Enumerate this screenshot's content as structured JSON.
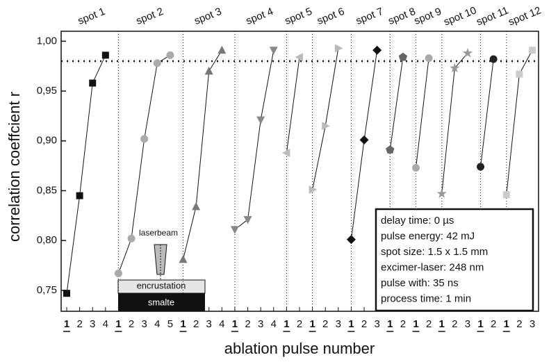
{
  "chart_data": {
    "type": "line",
    "x_label": "ablation pulse number",
    "y_label": "correlation coeffcient r",
    "categories": [
      "1",
      "2",
      "3",
      "4",
      "1",
      "2",
      "3",
      "4",
      "5",
      "1",
      "2",
      "3",
      "4",
      "1",
      "2",
      "3",
      "4",
      "1",
      "2",
      "1",
      "2",
      "3",
      "1",
      "2",
      "3",
      "1",
      "2",
      "1",
      "2",
      "1",
      "2",
      "3",
      "1",
      "2",
      "1",
      "2",
      "3"
    ],
    "ylim": [
      0.729,
      1.01
    ],
    "yticks": [
      {
        "value": 0.75,
        "label": "0,75"
      },
      {
        "value": 0.8,
        "label": "0,80"
      },
      {
        "value": 0.85,
        "label": "0,85"
      },
      {
        "value": 0.9,
        "label": "0,90"
      },
      {
        "value": 0.95,
        "label": "0,95"
      },
      {
        "value": 1.0,
        "label": "1,00"
      }
    ],
    "reference_line": 0.98,
    "series": [
      {
        "name": "spot 1",
        "color": "#111111",
        "marker": "square",
        "values": [
          0.747,
          0.845,
          0.958,
          0.986,
          null,
          null,
          null,
          null,
          null,
          null,
          null,
          null,
          null,
          null,
          null,
          null,
          null,
          null,
          null,
          null,
          null,
          null,
          null,
          null,
          null,
          null,
          null,
          null,
          null,
          null,
          null,
          null,
          null,
          null,
          null,
          null,
          null
        ]
      },
      {
        "name": "spot 2",
        "color": "#aaaaaa",
        "marker": "circle",
        "values": [
          null,
          null,
          null,
          null,
          0.767,
          0.802,
          0.902,
          0.978,
          0.986,
          null,
          null,
          null,
          null,
          null,
          null,
          null,
          null,
          null,
          null,
          null,
          null,
          null,
          null,
          null,
          null,
          null,
          null,
          null,
          null,
          null,
          null,
          null,
          null,
          null,
          null,
          null,
          null
        ]
      },
      {
        "name": "spot 3",
        "color": "#777777",
        "marker": "triangle-up",
        "values": [
          null,
          null,
          null,
          null,
          null,
          null,
          null,
          null,
          null,
          0.781,
          0.834,
          0.97,
          0.991,
          null,
          null,
          null,
          null,
          null,
          null,
          null,
          null,
          null,
          null,
          null,
          null,
          null,
          null,
          null,
          null,
          null,
          null,
          null,
          null,
          null,
          null,
          null,
          null
        ]
      },
      {
        "name": "spot 4",
        "color": "#888888",
        "marker": "triangle-down",
        "values": [
          null,
          null,
          null,
          null,
          null,
          null,
          null,
          null,
          null,
          null,
          null,
          null,
          null,
          0.811,
          0.821,
          0.921,
          0.991,
          null,
          null,
          null,
          null,
          null,
          null,
          null,
          null,
          null,
          null,
          null,
          null,
          null,
          null,
          null,
          null,
          null,
          null,
          null,
          null
        ]
      },
      {
        "name": "spot 5",
        "color": "#bbbbbb",
        "marker": "triangle-left",
        "values": [
          null,
          null,
          null,
          null,
          null,
          null,
          null,
          null,
          null,
          null,
          null,
          null,
          null,
          null,
          null,
          null,
          null,
          0.888,
          0.984,
          null,
          null,
          null,
          null,
          null,
          null,
          null,
          null,
          null,
          null,
          null,
          null,
          null,
          null,
          null,
          null,
          null,
          null
        ]
      },
      {
        "name": "spot 6",
        "color": "#bbbbbb",
        "marker": "triangle-right",
        "values": [
          null,
          null,
          null,
          null,
          null,
          null,
          null,
          null,
          null,
          null,
          null,
          null,
          null,
          null,
          null,
          null,
          null,
          null,
          null,
          0.851,
          0.915,
          0.993,
          null,
          null,
          null,
          null,
          null,
          null,
          null,
          null,
          null,
          null,
          null,
          null,
          null,
          null,
          null
        ]
      },
      {
        "name": "spot 7",
        "color": "#111111",
        "marker": "diamond",
        "values": [
          null,
          null,
          null,
          null,
          null,
          null,
          null,
          null,
          null,
          null,
          null,
          null,
          null,
          null,
          null,
          null,
          null,
          null,
          null,
          null,
          null,
          null,
          0.801,
          0.901,
          0.991,
          null,
          null,
          null,
          null,
          null,
          null,
          null,
          null,
          null,
          null,
          null,
          null
        ]
      },
      {
        "name": "spot 8",
        "color": "#666666",
        "marker": "pentagon",
        "values": [
          null,
          null,
          null,
          null,
          null,
          null,
          null,
          null,
          null,
          null,
          null,
          null,
          null,
          null,
          null,
          null,
          null,
          null,
          null,
          null,
          null,
          null,
          null,
          null,
          null,
          0.891,
          0.984,
          null,
          null,
          null,
          null,
          null,
          null,
          null,
          null,
          null,
          null
        ]
      },
      {
        "name": "spot 9",
        "color": "#aaaaaa",
        "marker": "circle",
        "values": [
          null,
          null,
          null,
          null,
          null,
          null,
          null,
          null,
          null,
          null,
          null,
          null,
          null,
          null,
          null,
          null,
          null,
          null,
          null,
          null,
          null,
          null,
          null,
          null,
          null,
          null,
          null,
          0.873,
          0.983,
          null,
          null,
          null,
          null,
          null,
          null,
          null,
          null
        ]
      },
      {
        "name": "spot 10",
        "color": "#999999",
        "marker": "star",
        "values": [
          null,
          null,
          null,
          null,
          null,
          null,
          null,
          null,
          null,
          null,
          null,
          null,
          null,
          null,
          null,
          null,
          null,
          null,
          null,
          null,
          null,
          null,
          null,
          null,
          null,
          null,
          null,
          null,
          null,
          0.847,
          0.973,
          0.988,
          null,
          null,
          null,
          null,
          null
        ]
      },
      {
        "name": "spot 11",
        "color": "#222222",
        "marker": "circle",
        "values": [
          null,
          null,
          null,
          null,
          null,
          null,
          null,
          null,
          null,
          null,
          null,
          null,
          null,
          null,
          null,
          null,
          null,
          null,
          null,
          null,
          null,
          null,
          null,
          null,
          null,
          null,
          null,
          null,
          null,
          null,
          null,
          null,
          0.874,
          0.982,
          null,
          null,
          null
        ]
      },
      {
        "name": "spot 12",
        "color": "#cccccc",
        "marker": "square",
        "values": [
          null,
          null,
          null,
          null,
          null,
          null,
          null,
          null,
          null,
          null,
          null,
          null,
          null,
          null,
          null,
          null,
          null,
          null,
          null,
          null,
          null,
          null,
          null,
          null,
          null,
          null,
          null,
          null,
          null,
          null,
          null,
          null,
          null,
          null,
          0.846,
          0.967,
          0.991
        ]
      }
    ],
    "annotations": [
      "delay time: 0 µs",
      "pulse energy: 42 mJ",
      "spot size: 1.5 x 1.5 mm",
      "excimer-laser: 248 nm",
      "pulse with: 35 ns",
      "process time: 1 min"
    ],
    "inset_labels": {
      "beam": "laserbeam",
      "layer_top": "encrustation",
      "layer_bottom": "smalte"
    }
  }
}
